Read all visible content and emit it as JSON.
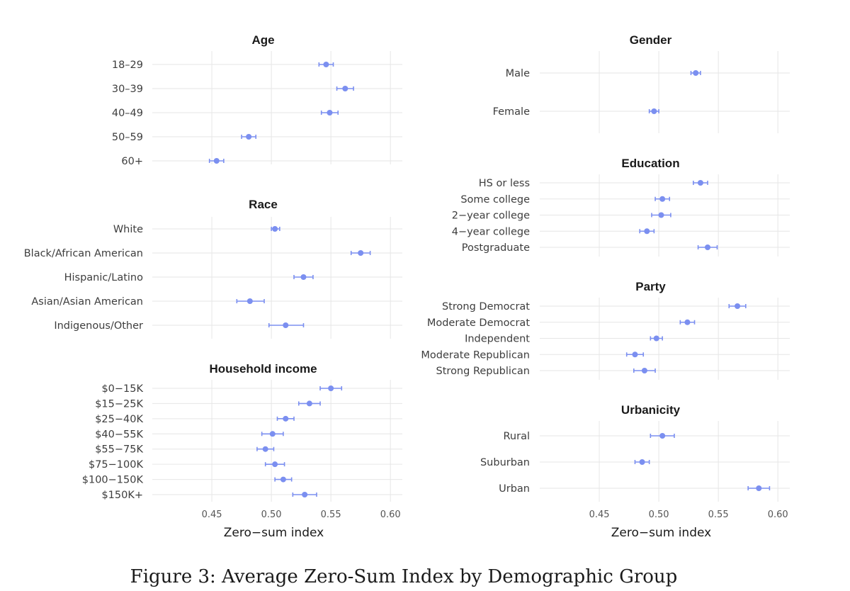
{
  "caption": "Figure 3: Average Zero-Sum Index by Demographic Group",
  "colors": {
    "point": "#7b8ff0",
    "grid": "#e6e6e6"
  },
  "chart_data": [
    {
      "type": "scatter",
      "title": "Age",
      "xlabel": "",
      "xlim": [
        0.4,
        0.61
      ],
      "xticks": [
        0.45,
        0.5,
        0.55,
        0.6
      ],
      "xtick_labels": [
        "0.45",
        "0.50",
        "0.55",
        "0.60"
      ],
      "show_x_axis": false,
      "categories": [
        "18–29",
        "30–39",
        "40–49",
        "50–59",
        "60+"
      ],
      "values": [
        0.546,
        0.562,
        0.549,
        0.481,
        0.454
      ],
      "ci_low": [
        0.54,
        0.555,
        0.542,
        0.475,
        0.448
      ],
      "ci_high": [
        0.552,
        0.569,
        0.556,
        0.487,
        0.46
      ]
    },
    {
      "type": "scatter",
      "title": "Race",
      "xlabel": "",
      "xlim": [
        0.4,
        0.61
      ],
      "xticks": [
        0.45,
        0.5,
        0.55,
        0.6
      ],
      "xtick_labels": [
        "0.45",
        "0.50",
        "0.55",
        "0.60"
      ],
      "show_x_axis": false,
      "categories": [
        "White",
        "Black/African American",
        "Hispanic/Latino",
        "Asian/Asian American",
        "Indigenous/Other"
      ],
      "values": [
        0.503,
        0.575,
        0.527,
        0.482,
        0.512
      ],
      "ci_low": [
        0.5,
        0.567,
        0.519,
        0.471,
        0.498
      ],
      "ci_high": [
        0.507,
        0.583,
        0.535,
        0.494,
        0.527
      ]
    },
    {
      "type": "scatter",
      "title": "Household income",
      "xlabel": "Zero−sum index",
      "xlim": [
        0.4,
        0.61
      ],
      "xticks": [
        0.45,
        0.5,
        0.55,
        0.6
      ],
      "xtick_labels": [
        "0.45",
        "0.50",
        "0.55",
        "0.60"
      ],
      "show_x_axis": true,
      "categories": [
        "$0−15K",
        "$15−25K",
        "$25−40K",
        "$40−55K",
        "$55−75K",
        "$75−100K",
        "$100−150K",
        "$150K+"
      ],
      "values": [
        0.55,
        0.532,
        0.512,
        0.501,
        0.495,
        0.503,
        0.51,
        0.528
      ],
      "ci_low": [
        0.541,
        0.523,
        0.505,
        0.492,
        0.488,
        0.495,
        0.503,
        0.518
      ],
      "ci_high": [
        0.559,
        0.541,
        0.519,
        0.51,
        0.502,
        0.511,
        0.517,
        0.538
      ]
    },
    {
      "type": "scatter",
      "title": "Gender",
      "xlabel": "",
      "xlim": [
        0.4,
        0.61
      ],
      "xticks": [
        0.45,
        0.5,
        0.55,
        0.6
      ],
      "xtick_labels": [
        "0.45",
        "0.50",
        "0.55",
        "0.60"
      ],
      "show_x_axis": false,
      "categories": [
        "Male",
        "Female"
      ],
      "values": [
        0.531,
        0.496
      ],
      "ci_low": [
        0.527,
        0.492
      ],
      "ci_high": [
        0.535,
        0.5
      ]
    },
    {
      "type": "scatter",
      "title": "Education",
      "xlabel": "",
      "xlim": [
        0.4,
        0.61
      ],
      "xticks": [
        0.45,
        0.5,
        0.55,
        0.6
      ],
      "xtick_labels": [
        "0.45",
        "0.50",
        "0.55",
        "0.60"
      ],
      "show_x_axis": false,
      "categories": [
        "HS or less",
        "Some college",
        "2−year college",
        "4−year college",
        "Postgraduate"
      ],
      "values": [
        0.535,
        0.503,
        0.502,
        0.49,
        0.541
      ],
      "ci_low": [
        0.529,
        0.497,
        0.494,
        0.484,
        0.533
      ],
      "ci_high": [
        0.541,
        0.509,
        0.51,
        0.496,
        0.549
      ]
    },
    {
      "type": "scatter",
      "title": "Party",
      "xlabel": "",
      "xlim": [
        0.4,
        0.61
      ],
      "xticks": [
        0.45,
        0.5,
        0.55,
        0.6
      ],
      "xtick_labels": [
        "0.45",
        "0.50",
        "0.55",
        "0.60"
      ],
      "show_x_axis": false,
      "categories": [
        "Strong Democrat",
        "Moderate Democrat",
        "Independent",
        "Moderate Republican",
        "Strong Republican"
      ],
      "values": [
        0.566,
        0.524,
        0.498,
        0.48,
        0.488
      ],
      "ci_low": [
        0.559,
        0.518,
        0.493,
        0.473,
        0.479
      ],
      "ci_high": [
        0.573,
        0.53,
        0.503,
        0.487,
        0.497
      ]
    },
    {
      "type": "scatter",
      "title": "Urbanicity",
      "xlabel": "Zero−sum index",
      "xlim": [
        0.4,
        0.61
      ],
      "xticks": [
        0.45,
        0.5,
        0.55,
        0.6
      ],
      "xtick_labels": [
        "0.45",
        "0.50",
        "0.55",
        "0.60"
      ],
      "show_x_axis": true,
      "categories": [
        "Rural",
        "Suburban",
        "Urban"
      ],
      "values": [
        0.503,
        0.486,
        0.584
      ],
      "ci_low": [
        0.493,
        0.48,
        0.575
      ],
      "ci_high": [
        0.513,
        0.492,
        0.593
      ]
    }
  ]
}
